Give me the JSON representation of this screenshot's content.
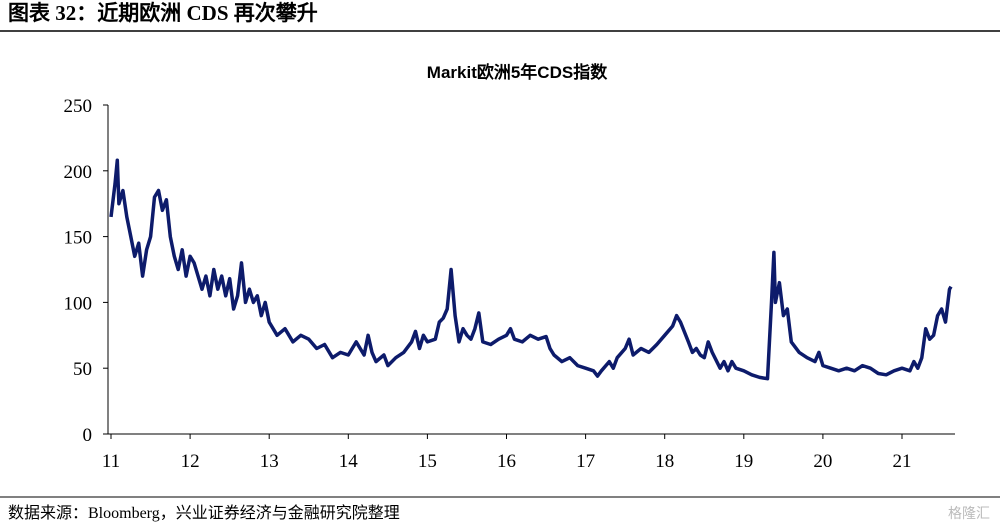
{
  "header": {
    "title": "图表 32：近期欧洲 CDS 再次攀升"
  },
  "chart_data": {
    "type": "line",
    "title": "Markit欧洲5年CDS指数",
    "color": "#0d1b6b",
    "xlim": [
      11,
      21.67
    ],
    "xticks": [
      11,
      12,
      13,
      14,
      15,
      16,
      17,
      18,
      19,
      20,
      21
    ],
    "ylim": [
      0,
      250
    ],
    "yticks": [
      0,
      50,
      100,
      150,
      200,
      250
    ],
    "grid": false,
    "x": [
      11.0,
      11.05,
      11.08,
      11.1,
      11.15,
      11.2,
      11.25,
      11.3,
      11.35,
      11.4,
      11.45,
      11.5,
      11.55,
      11.6,
      11.65,
      11.7,
      11.75,
      11.8,
      11.85,
      11.9,
      11.95,
      12.0,
      12.05,
      12.15,
      12.2,
      12.25,
      12.3,
      12.35,
      12.4,
      12.45,
      12.5,
      12.55,
      12.6,
      12.65,
      12.7,
      12.75,
      12.8,
      12.85,
      12.9,
      12.95,
      13.0,
      13.1,
      13.2,
      13.3,
      13.4,
      13.5,
      13.6,
      13.7,
      13.8,
      13.9,
      14.0,
      14.1,
      14.2,
      14.25,
      14.3,
      14.35,
      14.45,
      14.5,
      14.6,
      14.7,
      14.8,
      14.85,
      14.9,
      14.95,
      15.0,
      15.1,
      15.15,
      15.2,
      15.25,
      15.3,
      15.35,
      15.4,
      15.45,
      15.5,
      15.55,
      15.6,
      15.65,
      15.7,
      15.8,
      15.9,
      16.0,
      16.05,
      16.1,
      16.2,
      16.3,
      16.4,
      16.5,
      16.55,
      16.6,
      16.7,
      16.8,
      16.9,
      17.0,
      17.1,
      17.15,
      17.2,
      17.3,
      17.35,
      17.4,
      17.5,
      17.55,
      17.6,
      17.7,
      17.8,
      17.9,
      18.0,
      18.1,
      18.15,
      18.2,
      18.3,
      18.35,
      18.4,
      18.45,
      18.5,
      18.55,
      18.6,
      18.7,
      18.75,
      18.8,
      18.85,
      18.9,
      19.0,
      19.1,
      19.2,
      19.3,
      19.35,
      19.38,
      19.4,
      19.45,
      19.5,
      19.55,
      19.6,
      19.7,
      19.8,
      19.9,
      19.95,
      20.0,
      20.1,
      20.2,
      20.3,
      20.4,
      20.5,
      20.6,
      20.7,
      20.8,
      20.9,
      21.0,
      21.1,
      21.15,
      21.2,
      21.25,
      21.3,
      21.35,
      21.4,
      21.45,
      21.5,
      21.55,
      21.6,
      21.62
    ],
    "values": [
      165,
      190,
      208,
      175,
      185,
      165,
      150,
      135,
      145,
      120,
      140,
      150,
      180,
      185,
      170,
      178,
      150,
      135,
      125,
      140,
      120,
      135,
      130,
      110,
      120,
      105,
      125,
      110,
      120,
      105,
      118,
      95,
      105,
      130,
      100,
      110,
      100,
      105,
      90,
      100,
      85,
      75,
      80,
      70,
      75,
      72,
      65,
      68,
      58,
      62,
      60,
      70,
      60,
      75,
      62,
      55,
      60,
      52,
      58,
      62,
      70,
      78,
      65,
      75,
      70,
      72,
      85,
      88,
      95,
      125,
      90,
      70,
      80,
      75,
      72,
      80,
      92,
      70,
      68,
      72,
      75,
      80,
      72,
      70,
      75,
      72,
      74,
      65,
      60,
      55,
      58,
      52,
      50,
      48,
      44,
      48,
      55,
      50,
      58,
      65,
      72,
      60,
      65,
      62,
      68,
      75,
      82,
      90,
      85,
      70,
      62,
      65,
      60,
      58,
      70,
      62,
      50,
      55,
      48,
      55,
      50,
      48,
      45,
      43,
      42,
      100,
      138,
      100,
      115,
      90,
      95,
      70,
      62,
      58,
      55,
      62,
      52,
      50,
      48,
      50,
      48,
      52,
      50,
      46,
      45,
      48,
      50,
      48,
      55,
      50,
      58,
      80,
      72,
      75,
      90,
      95,
      85,
      110,
      112
    ]
  },
  "footer": {
    "source": "数据来源：Bloomberg，兴业证券经济与金融研究院整理",
    "watermark": "格隆汇"
  }
}
